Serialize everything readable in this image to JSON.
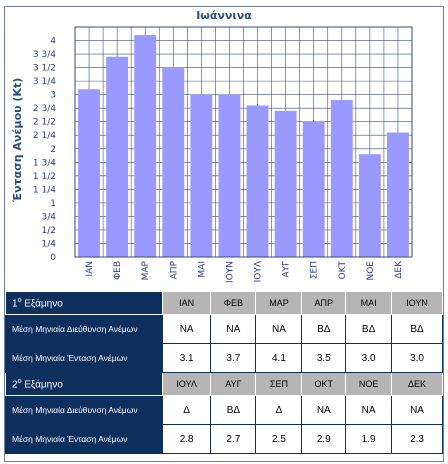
{
  "chart_data": {
    "type": "bar",
    "title": "Ιωάννινα",
    "xlabel": "",
    "ylabel": "Ένταση Ανέμου (Kt)",
    "categories": [
      "ΙΑΝ",
      "ΦΕΒ",
      "ΜΑΡ",
      "ΑΠΡ",
      "ΜΑΙ",
      "ΙΟΥΝ",
      "ΙΟΥΛ",
      "ΑΥΓ",
      "ΣΕΠ",
      "ΟΚΤ",
      "ΝΟΕ",
      "ΔΕΚ"
    ],
    "values": [
      3.1,
      3.7,
      4.1,
      3.5,
      3.0,
      3.0,
      2.8,
      2.7,
      2.5,
      2.9,
      1.9,
      2.3
    ],
    "ylim": [
      0,
      4.25
    ],
    "yticks": [
      "0",
      "1/4",
      "1/2",
      "3/4",
      "1",
      "1 1/4",
      "1 1/2",
      "1 3/4",
      "2",
      "2 1/4",
      "2 1/2",
      "2 3/4",
      "3",
      "3 1/4",
      "3 1/2",
      "3 3/4",
      "4"
    ],
    "grid": true,
    "bar_color": "#9999ff"
  },
  "table": {
    "sem1": {
      "num": "1",
      "sup": "ο",
      "label": " Εξάμηνο",
      "months": [
        "ΙΑΝ",
        "ΦΕΒ",
        "ΜΑΡ",
        "ΑΠΡ",
        "ΜΑΙ",
        "ΙΟΥΝ"
      ],
      "dir_label": "Μέση Μηνιαία Διεύθυνση Ανέμων",
      "dir": [
        "ΝΑ",
        "ΝΑ",
        "ΝΑ",
        "ΒΔ",
        "ΒΔ",
        "ΒΔ"
      ],
      "int_label": "Μέση Μηνιαία Ένταση Ανέμων",
      "int": [
        "3.1",
        "3.7",
        "4.1",
        "3.5",
        "3.0",
        "3.0"
      ]
    },
    "sem2": {
      "num": "2",
      "sup": "ο",
      "label": " Εξάμηνο",
      "months": [
        "ΙΟΥΛ",
        "ΑΥΓ",
        "ΣΕΠ",
        "ΟΚΤ",
        "ΝΟΕ",
        "ΔΕΚ"
      ],
      "dir_label": "Μέση Μηνιαία Διεύθυνση Ανέμων",
      "dir": [
        "Δ",
        "ΒΔ",
        "Δ",
        "ΝΑ",
        "ΝΑ",
        "ΝΑ"
      ],
      "int_label": "Μέση Μηνιαία Ένταση Ανέμων",
      "int": [
        "2.8",
        "2.7",
        "2.5",
        "2.9",
        "1.9",
        "2.3"
      ]
    }
  }
}
